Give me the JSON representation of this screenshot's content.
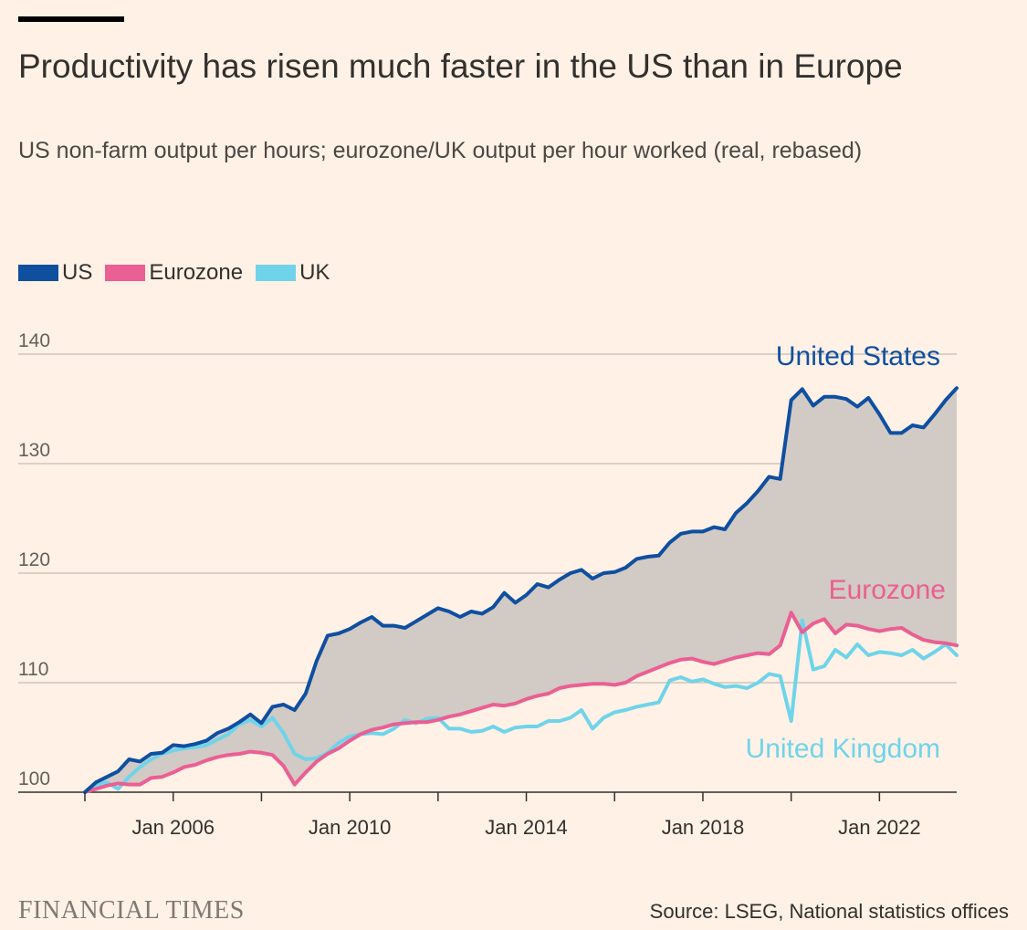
{
  "header": {
    "title": "Productivity has risen much faster in the US than in Europe",
    "subtitle": "US non-farm output per hours; eurozone/UK output per hour worked (real, rebased)"
  },
  "legend": [
    {
      "label": "US",
      "color": "#0f4fa0"
    },
    {
      "label": "Eurozone",
      "color": "#ea5f94"
    },
    {
      "label": "UK",
      "color": "#6fd4ea"
    }
  ],
  "chart_data": {
    "type": "line",
    "title": "Productivity has risen much faster in the US than in Europe",
    "subtitle": "US non-farm output per hours; eurozone/UK output per hour worked (real, rebased)",
    "xlim": [
      2004.0,
      2023.75
    ],
    "ylim": [
      100,
      140
    ],
    "yticks": [
      100,
      110,
      120,
      130,
      140
    ],
    "xticks": [
      2006,
      2010,
      2014,
      2018,
      2022
    ],
    "xtick_labels": [
      "Jan 2006",
      "Jan 2010",
      "Jan 2014",
      "Jan 2018",
      "Jan 2022"
    ],
    "grid": "horizontal",
    "legend_position": "top-left",
    "shaded_area": "between US and Eurozone",
    "annotations": [
      {
        "text": "United States",
        "series": "US"
      },
      {
        "text": "Eurozone",
        "series": "Eurozone"
      },
      {
        "text": "United Kingdom",
        "series": "UK"
      }
    ],
    "series": [
      {
        "name": "US",
        "color": "#0f4fa0",
        "x": [
          2004.0,
          2004.25,
          2004.5,
          2004.75,
          2005.0,
          2005.25,
          2005.5,
          2005.75,
          2006.0,
          2006.25,
          2006.5,
          2006.75,
          2007.0,
          2007.25,
          2007.5,
          2007.75,
          2008.0,
          2008.25,
          2008.5,
          2008.75,
          2009.0,
          2009.25,
          2009.5,
          2009.75,
          2010.0,
          2010.25,
          2010.5,
          2010.75,
          2011.0,
          2011.25,
          2011.5,
          2011.75,
          2012.0,
          2012.25,
          2012.5,
          2012.75,
          2013.0,
          2013.25,
          2013.5,
          2013.75,
          2014.0,
          2014.25,
          2014.5,
          2014.75,
          2015.0,
          2015.25,
          2015.5,
          2015.75,
          2016.0,
          2016.25,
          2016.5,
          2016.75,
          2017.0,
          2017.25,
          2017.5,
          2017.75,
          2018.0,
          2018.25,
          2018.5,
          2018.75,
          2019.0,
          2019.25,
          2019.5,
          2019.75,
          2020.0,
          2020.25,
          2020.5,
          2020.75,
          2021.0,
          2021.25,
          2021.5,
          2021.75,
          2022.0,
          2022.25,
          2022.5,
          2022.75,
          2023.0,
          2023.25,
          2023.5,
          2023.75
        ],
        "values": [
          100.0,
          100.9,
          101.4,
          101.9,
          103.0,
          102.8,
          103.5,
          103.6,
          104.3,
          104.2,
          104.4,
          104.7,
          105.4,
          105.8,
          106.4,
          107.1,
          106.3,
          107.8,
          108.0,
          107.5,
          109.0,
          112.0,
          114.3,
          114.5,
          114.9,
          115.5,
          116.0,
          115.2,
          115.2,
          115.0,
          115.6,
          116.2,
          116.8,
          116.5,
          116.0,
          116.5,
          116.3,
          116.9,
          118.2,
          117.3,
          118.0,
          119.0,
          118.7,
          119.4,
          120.0,
          120.3,
          119.5,
          120.0,
          120.1,
          120.5,
          121.3,
          121.5,
          121.6,
          122.8,
          123.6,
          123.8,
          123.8,
          124.2,
          124.0,
          125.5,
          126.4,
          127.5,
          128.8,
          128.6,
          135.8,
          136.8,
          135.3,
          136.1,
          136.1,
          135.9,
          135.2,
          136.0,
          134.5,
          132.8,
          132.8,
          133.5,
          133.3,
          134.5,
          135.8,
          136.9
        ]
      },
      {
        "name": "Eurozone",
        "color": "#ea5f94",
        "x": [
          2004.0,
          2004.25,
          2004.5,
          2004.75,
          2005.0,
          2005.25,
          2005.5,
          2005.75,
          2006.0,
          2006.25,
          2006.5,
          2006.75,
          2007.0,
          2007.25,
          2007.5,
          2007.75,
          2008.0,
          2008.25,
          2008.5,
          2008.75,
          2009.0,
          2009.25,
          2009.5,
          2009.75,
          2010.0,
          2010.25,
          2010.5,
          2010.75,
          2011.0,
          2011.25,
          2011.5,
          2011.75,
          2012.0,
          2012.25,
          2012.5,
          2012.75,
          2013.0,
          2013.25,
          2013.5,
          2013.75,
          2014.0,
          2014.25,
          2014.5,
          2014.75,
          2015.0,
          2015.25,
          2015.5,
          2015.75,
          2016.0,
          2016.25,
          2016.5,
          2016.75,
          2017.0,
          2017.25,
          2017.5,
          2017.75,
          2018.0,
          2018.25,
          2018.5,
          2018.75,
          2019.0,
          2019.25,
          2019.5,
          2019.75,
          2020.0,
          2020.25,
          2020.5,
          2020.75,
          2021.0,
          2021.25,
          2021.5,
          2021.75,
          2022.0,
          2022.25,
          2022.5,
          2022.75,
          2023.0,
          2023.25,
          2023.5,
          2023.75
        ],
        "values": [
          100.0,
          100.3,
          100.6,
          100.8,
          100.7,
          100.7,
          101.3,
          101.4,
          101.8,
          102.3,
          102.5,
          102.9,
          103.2,
          103.4,
          103.5,
          103.7,
          103.6,
          103.4,
          102.4,
          100.7,
          101.8,
          102.8,
          103.5,
          104.0,
          104.7,
          105.3,
          105.7,
          105.9,
          106.2,
          106.3,
          106.4,
          106.4,
          106.6,
          106.9,
          107.1,
          107.4,
          107.7,
          108.0,
          107.9,
          108.1,
          108.5,
          108.8,
          109.0,
          109.5,
          109.7,
          109.8,
          109.9,
          109.9,
          109.8,
          110.0,
          110.6,
          111.0,
          111.4,
          111.8,
          112.1,
          112.2,
          111.9,
          111.7,
          112.0,
          112.3,
          112.5,
          112.7,
          112.6,
          113.4,
          116.4,
          114.6,
          115.4,
          115.8,
          114.5,
          115.3,
          115.2,
          114.9,
          114.7,
          114.9,
          115.0,
          114.4,
          113.9,
          113.7,
          113.6,
          113.4
        ]
      },
      {
        "name": "UK",
        "color": "#6fd4ea",
        "x": [
          2004.0,
          2004.25,
          2004.5,
          2004.75,
          2005.0,
          2005.25,
          2005.5,
          2005.75,
          2006.0,
          2006.25,
          2006.5,
          2006.75,
          2007.0,
          2007.25,
          2007.5,
          2007.75,
          2008.0,
          2008.25,
          2008.5,
          2008.75,
          2009.0,
          2009.25,
          2009.5,
          2009.75,
          2010.0,
          2010.25,
          2010.5,
          2010.75,
          2011.0,
          2011.25,
          2011.5,
          2011.75,
          2012.0,
          2012.25,
          2012.5,
          2012.75,
          2013.0,
          2013.25,
          2013.5,
          2013.75,
          2014.0,
          2014.25,
          2014.5,
          2014.75,
          2015.0,
          2015.25,
          2015.5,
          2015.75,
          2016.0,
          2016.25,
          2016.5,
          2016.75,
          2017.0,
          2017.25,
          2017.5,
          2017.75,
          2018.0,
          2018.25,
          2018.5,
          2018.75,
          2019.0,
          2019.25,
          2019.5,
          2019.75,
          2020.0,
          2020.25,
          2020.5,
          2020.75,
          2021.0,
          2021.25,
          2021.5,
          2021.75,
          2022.0,
          2022.25,
          2022.5,
          2022.75,
          2023.0,
          2023.25,
          2023.5,
          2023.75
        ],
        "values": [
          100.0,
          100.6,
          100.9,
          100.3,
          101.4,
          102.3,
          103.0,
          103.5,
          103.8,
          104.0,
          104.1,
          104.3,
          104.8,
          105.3,
          106.2,
          106.6,
          106.0,
          106.8,
          105.4,
          103.5,
          103.0,
          103.1,
          103.6,
          104.5,
          105.1,
          105.3,
          105.4,
          105.3,
          105.8,
          106.6,
          106.3,
          106.7,
          106.8,
          105.8,
          105.8,
          105.5,
          105.6,
          106.0,
          105.5,
          105.9,
          106.0,
          106.0,
          106.5,
          106.5,
          106.8,
          107.5,
          105.8,
          106.8,
          107.3,
          107.5,
          107.8,
          108.0,
          108.2,
          110.2,
          110.5,
          110.1,
          110.3,
          109.9,
          109.6,
          109.7,
          109.5,
          110.0,
          110.8,
          110.6,
          106.5,
          115.7,
          111.2,
          111.5,
          113.0,
          112.3,
          113.5,
          112.5,
          112.8,
          112.7,
          112.5,
          113.0,
          112.2,
          112.8,
          113.5,
          112.5
        ]
      }
    ]
  },
  "footer": {
    "logo": "FINANCIAL TIMES",
    "source": "Source: LSEG, National statistics offices"
  }
}
